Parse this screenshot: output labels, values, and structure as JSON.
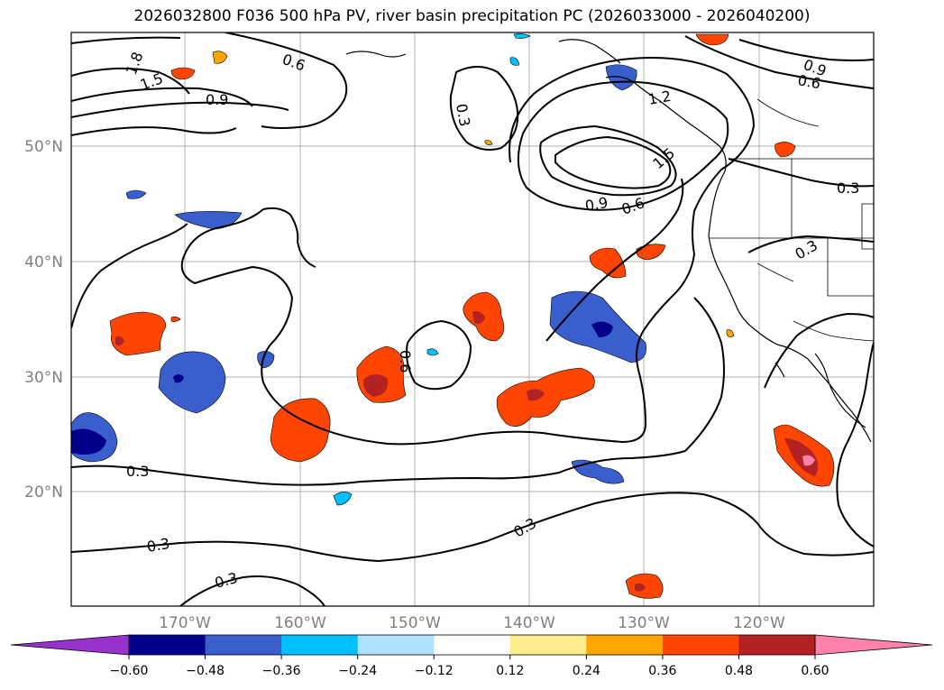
{
  "title": "2026032800 F036 500 hPa PV, river basin precipitation PC (2026033000 - 2026040200)",
  "latitude_labels": [
    "50°N",
    "40°N",
    "30°N",
    "20°N"
  ],
  "longitude_labels": [
    "170°W",
    "160°W",
    "150°W",
    "140°W",
    "130°W",
    "120°W"
  ],
  "contour_labels": [
    "1.8",
    "1.5",
    "0.6",
    "0.9",
    "0.3",
    "1.2",
    "1.5",
    "0.9",
    "0.6",
    "0.9",
    "0.6",
    "0.3",
    "0.3",
    "0.6",
    "0.3",
    "0.3",
    "0.3",
    "0.3"
  ],
  "colorbar": {
    "ticks": [
      "−0.60",
      "−0.48",
      "−0.36",
      "−0.24",
      "−0.12",
      "0.12",
      "0.24",
      "0.36",
      "0.48",
      "0.60"
    ],
    "colors": [
      "#9932cc",
      "#00008b",
      "#3a5fcd",
      "#00bfff",
      "#b0e2ff",
      "#ffffff",
      "#ffec8b",
      "#ffa500",
      "#ff4500",
      "#b22222",
      "#ff82ab"
    ]
  },
  "colors": {
    "neg_strong": "#00008b",
    "neg_mid": "#3a5fcd",
    "neg_light": "#00bfff",
    "pos_light": "#ffec8b",
    "pos_mid": "#ffa500",
    "pos_strong": "#ff4500",
    "pos_dark": "#b22222",
    "pos_max": "#ff82ab"
  }
}
